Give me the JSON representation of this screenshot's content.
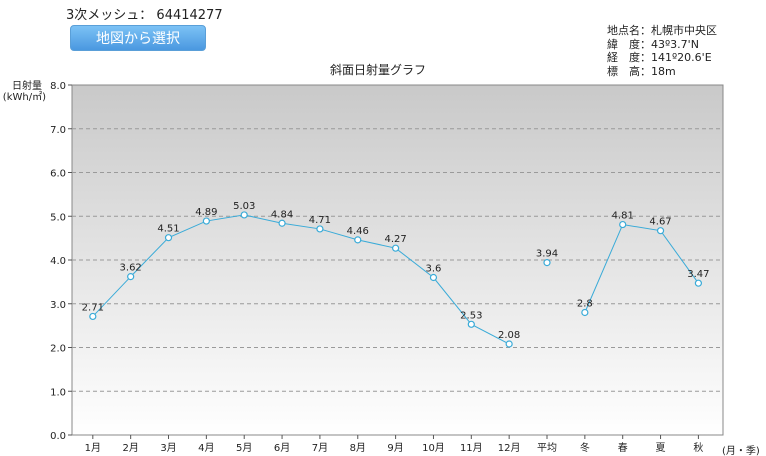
{
  "header": {
    "mesh_label": "3次メッシュ：",
    "mesh_code": "64414277",
    "map_button_label": "地図から選択"
  },
  "location_info": [
    {
      "key": "地点名：",
      "value": "札幌市中央区"
    },
    {
      "key": "緯　度：",
      "value": "43º3.7'N"
    },
    {
      "key": "経　度：",
      "value": "141º20.6'E"
    },
    {
      "key": "標　高：",
      "value": "18m"
    }
  ],
  "colors": {
    "line": "#3aabd8",
    "plot_top": "#c9c9c9",
    "plot_bottom": "#ffffff"
  },
  "chart_data": {
    "type": "line",
    "title": "斜面日射量グラフ",
    "ylabel": "日射量",
    "yunit": "(kWh/㎡)",
    "xlabel": "(月・季)",
    "ylim": [
      0,
      8
    ],
    "yticks": [
      "0.0",
      "1.0",
      "2.0",
      "3.0",
      "4.0",
      "5.0",
      "6.0",
      "7.0",
      "8.0"
    ],
    "grid": true,
    "categories": [
      "1月",
      "2月",
      "3月",
      "4月",
      "5月",
      "6月",
      "7月",
      "8月",
      "9月",
      "10月",
      "11月",
      "12月",
      "平均",
      "冬",
      "春",
      "夏",
      "秋"
    ],
    "values": [
      2.71,
      3.62,
      4.51,
      4.89,
      5.03,
      4.84,
      4.71,
      4.46,
      4.27,
      3.6,
      2.53,
      2.08,
      3.94,
      2.8,
      4.81,
      4.67,
      3.47
    ],
    "value_labels": [
      "2.71",
      "3.62",
      "4.51",
      "4.89",
      "5.03",
      "4.84",
      "4.71",
      "4.46",
      "4.27",
      "3.6",
      "2.53",
      "2.08",
      "3.94",
      "2.8",
      "4.81",
      "4.67",
      "3.47"
    ],
    "segments": [
      [
        0,
        11
      ],
      [
        12,
        12
      ],
      [
        13,
        16
      ]
    ]
  }
}
